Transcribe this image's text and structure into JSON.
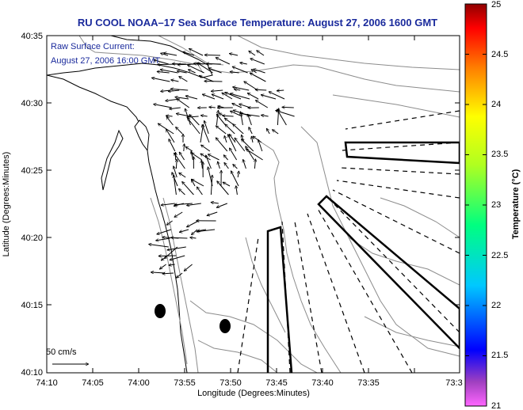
{
  "title": "RU COOL  NOAA–17  Sea Surface Temperature:  August 27, 2006 1600 GMT",
  "annotation": {
    "line1": "Raw Surface Current:",
    "line2": "August 27, 2006 16:00 GMT"
  },
  "scale_label": "50 cm/s",
  "axes": {
    "xlabel": "Longitude (Degrees:Minutes)",
    "ylabel": "Latitude (Degrees:Minutes)",
    "x_ticks": [
      "74:10",
      "74:05",
      "74:00",
      "73:55",
      "73:50",
      "73:45",
      "73:40",
      "73:35",
      "73:3"
    ],
    "y_ticks": [
      "40:35",
      "40:30",
      "40:25",
      "40:20",
      "40:15",
      "40:10"
    ]
  },
  "colorbar": {
    "label": "Temperature (°C)",
    "ticks": [
      "25",
      "24.5",
      "24",
      "23.5",
      "23",
      "22.5",
      "22",
      "21.5",
      "21"
    ],
    "range": [
      21,
      25
    ]
  },
  "colors": {
    "title": "#1a2a9c",
    "annotation": "#1a2a9c",
    "contour": "#8c8c8c",
    "land_fill": "#ffffff"
  }
}
